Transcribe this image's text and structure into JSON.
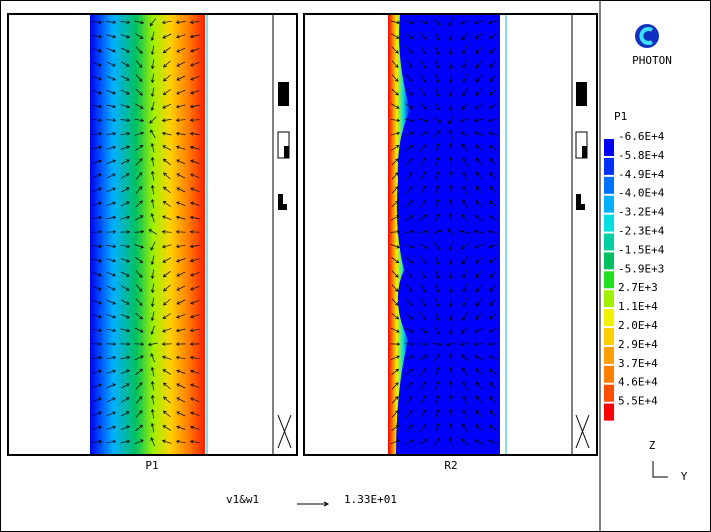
{
  "panels": [
    {
      "label": "P1"
    },
    {
      "label": "R2"
    }
  ],
  "logo": "PHOTON",
  "legend": {
    "title": "P1",
    "items": [
      {
        "label": "-6.6E+4",
        "color": "#0000ff"
      },
      {
        "label": "-5.8E+4",
        "color": "#0030ff"
      },
      {
        "label": "-4.9E+4",
        "color": "#0070ff"
      },
      {
        "label": "-4.0E+4",
        "color": "#00b0ff"
      },
      {
        "label": "-3.2E+4",
        "color": "#00e0e0"
      },
      {
        "label": "-2.3E+4",
        "color": "#00d0a0"
      },
      {
        "label": "-1.5E+4",
        "color": "#00c060"
      },
      {
        "label": "-5.9E+3",
        "color": "#20e020"
      },
      {
        "label": "2.7E+3",
        "color": "#a0f000"
      },
      {
        "label": "1.1E+4",
        "color": "#f0f000"
      },
      {
        "label": "2.0E+4",
        "color": "#ffd000"
      },
      {
        "label": "2.9E+4",
        "color": "#ffa000"
      },
      {
        "label": "3.7E+4",
        "color": "#ff8000"
      },
      {
        "label": "4.6E+4",
        "color": "#ff5000"
      },
      {
        "label": "5.5E+4",
        "color": "#ff0000"
      }
    ]
  },
  "vector_scale": {
    "label": "v1&w1",
    "value": "1.33E+01"
  },
  "axes": {
    "z": "Z",
    "y": "Y"
  }
}
